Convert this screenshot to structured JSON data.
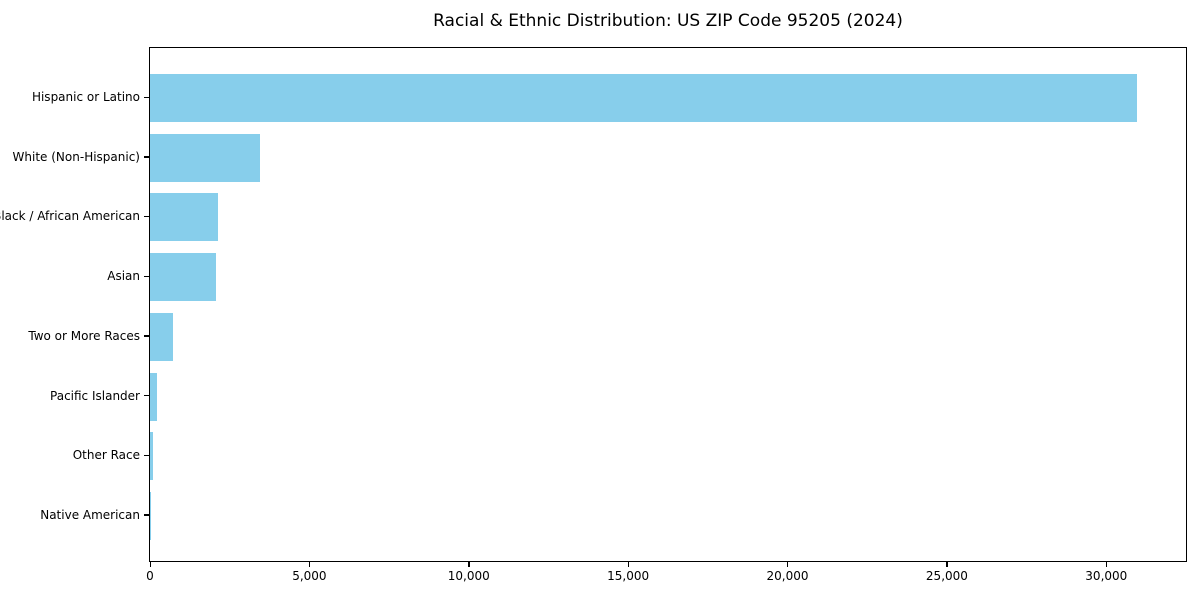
{
  "chart_data": {
    "type": "bar",
    "orientation": "horizontal",
    "title": "Racial & Ethnic Distribution: US ZIP Code 95205 (2024)",
    "categories": [
      "Hispanic or Latino",
      "White (Non-Hispanic)",
      "Black / African American",
      "Asian",
      "Two or More Races",
      "Pacific Islander",
      "Other Race",
      "Native American"
    ],
    "values": [
      30950,
      3450,
      2130,
      2060,
      710,
      220,
      95,
      25
    ],
    "xlabel": "",
    "ylabel": "",
    "xlim": [
      0,
      32500
    ],
    "x_ticks": [
      0,
      5000,
      10000,
      15000,
      20000,
      25000,
      30000
    ],
    "x_tick_labels": [
      "0",
      "5,000",
      "10,000",
      "15,000",
      "20,000",
      "25,000",
      "30,000"
    ],
    "bar_color": "#87CEEB",
    "spine_color": "#000000",
    "text_color": "#000000",
    "background_color": "#ffffff",
    "grid": false,
    "legend": null
  }
}
